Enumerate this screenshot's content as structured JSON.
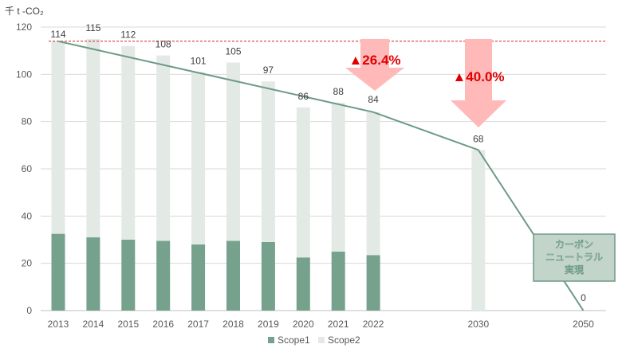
{
  "chart_data": {
    "type": "bar",
    "unit_label": "千 t -CO₂",
    "categories": [
      "2013",
      "2014",
      "2015",
      "2016",
      "2017",
      "2018",
      "2019",
      "2020",
      "2021",
      "2022",
      "2030",
      "2050"
    ],
    "x_positions": [
      2013,
      2014,
      2015,
      2016,
      2017,
      2018,
      2019,
      2020,
      2021,
      2022,
      2025,
      2028
    ],
    "series": [
      {
        "name": "Scope1",
        "values": [
          32.5,
          31,
          30,
          29.5,
          28,
          29.5,
          29,
          22.5,
          25,
          23.5,
          null,
          null
        ],
        "color": "#76a18d"
      },
      {
        "name": "Scope2",
        "values": [
          81.5,
          84,
          82,
          78.5,
          73,
          75.5,
          68,
          63.5,
          63,
          60.5,
          68,
          null
        ],
        "color": "#e3eae5"
      }
    ],
    "totals": [
      114,
      115,
      112,
      108,
      101,
      105,
      97,
      86,
      88,
      84,
      68,
      0
    ],
    "total_labels": [
      "114",
      "115",
      "112",
      "108",
      "101",
      "105",
      "97",
      "86",
      "88",
      "84",
      "68",
      "0"
    ],
    "trend_line": {
      "points": [
        [
          2013,
          114
        ],
        [
          2022,
          84
        ],
        [
          2030,
          68
        ],
        [
          2050,
          0
        ]
      ],
      "color": "#6d9a86"
    },
    "baseline": {
      "value": 114,
      "color": "#d42020",
      "style": "dashed"
    },
    "annotations": [
      {
        "text": "▲26.4%",
        "color": "#e00000",
        "arrow_color": "#ffb9b9"
      },
      {
        "text": "▲40.0%",
        "color": "#e00000",
        "arrow_color": "#ffb9b9"
      }
    ],
    "callout": {
      "lines": [
        "カーボン",
        "ニュートラル",
        "実現"
      ],
      "fill": "#c3d5cb",
      "border": "#6d9a86"
    },
    "ylim": [
      0,
      120
    ],
    "yticks": [
      0,
      20,
      40,
      60,
      80,
      100,
      120
    ],
    "legend": {
      "position": "bottom",
      "items": [
        "Scope1",
        "Scope2"
      ]
    },
    "grid": true
  }
}
